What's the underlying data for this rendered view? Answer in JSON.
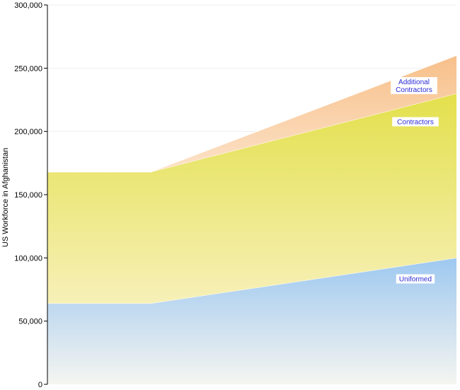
{
  "chart_data": {
    "type": "area",
    "stacked": true,
    "ylabel": "US Workforce in Afghanistan",
    "ylim": [
      0,
      300000
    ],
    "yticks": [
      0,
      50000,
      100000,
      150000,
      200000,
      250000,
      300000
    ],
    "ytick_labels": [
      "0",
      "50,000",
      "100,000",
      "150,000",
      "200,000",
      "250,000",
      "300,000"
    ],
    "x_points": 3,
    "grid": "horizontal",
    "legend": "none",
    "series": [
      {
        "name": "Uniformed",
        "values": [
          64000,
          64000,
          100000
        ],
        "colors": [
          "#9ec8f0",
          "#f5f5f0"
        ]
      },
      {
        "name": "Contractors",
        "values": [
          104000,
          104000,
          130000
        ],
        "colors": [
          "#e3e04c",
          "#f7f0b8"
        ]
      },
      {
        "name": "Additional Contractors",
        "values": [
          0,
          0,
          30000
        ],
        "label_lines": [
          "Additional",
          "Contractors"
        ],
        "colors": [
          "#f7c08a",
          "#fce2c8"
        ]
      }
    ]
  }
}
